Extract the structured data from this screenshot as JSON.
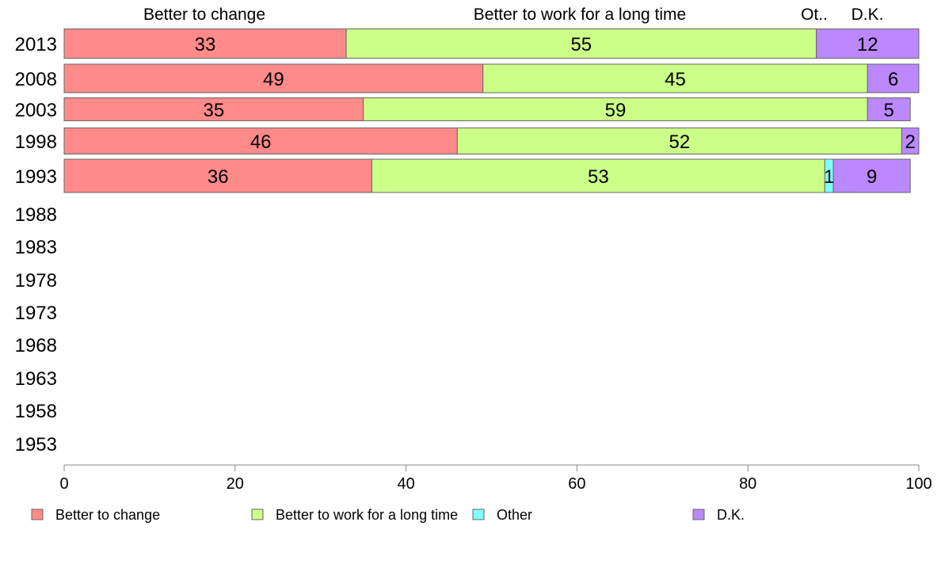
{
  "chart_data": {
    "type": "bar",
    "orientation": "horizontal",
    "stacked": true,
    "categories": [
      "2013",
      "2008",
      "2003",
      "1998",
      "1993",
      "1988",
      "1983",
      "1978",
      "1973",
      "1968",
      "1963",
      "1958",
      "1953"
    ],
    "series": [
      {
        "name": "Better to change",
        "color": "#ff8a8a",
        "values": [
          33,
          49,
          35,
          46,
          36,
          null,
          null,
          null,
          null,
          null,
          null,
          null,
          null
        ]
      },
      {
        "name": "Better to work for a long time",
        "color": "#ccff88",
        "values": [
          55,
          45,
          59,
          52,
          53,
          null,
          null,
          null,
          null,
          null,
          null,
          null,
          null
        ]
      },
      {
        "name": "Other",
        "color": "#80ffff",
        "values": [
          0,
          0,
          0,
          0,
          1,
          null,
          null,
          null,
          null,
          null,
          null,
          null,
          null
        ]
      },
      {
        "name": "D.K.",
        "color": "#bb88ff",
        "values": [
          12,
          6,
          5,
          2,
          9,
          null,
          null,
          null,
          null,
          null,
          null,
          null,
          null
        ]
      }
    ],
    "top_labels": [
      "Better to change",
      "Better to work for a long time",
      "Ot..",
      "D.K."
    ],
    "xlim": [
      0,
      100
    ],
    "xticks": [
      0,
      20,
      40,
      60,
      80,
      100
    ],
    "legend_position": "bottom",
    "grid": false
  }
}
